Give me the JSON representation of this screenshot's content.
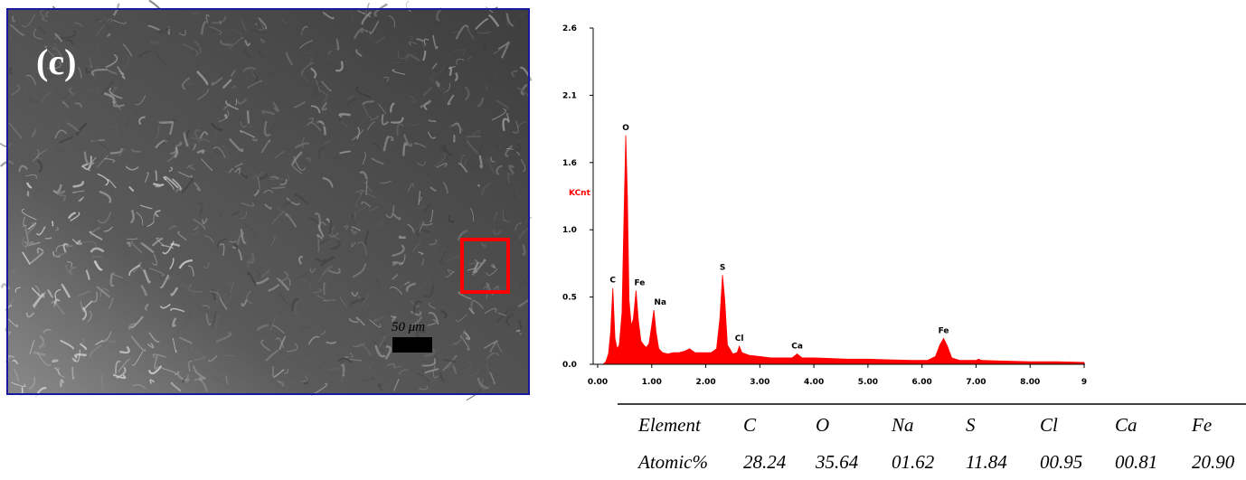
{
  "image": {
    "panel_label": "(c)",
    "scale_bar": "50 μm"
  },
  "chart_data": {
    "type": "area",
    "y_label": "KCnt",
    "color": "#ff0000",
    "x": [
      0.1,
      0.15,
      0.2,
      0.24,
      0.28,
      0.32,
      0.36,
      0.4,
      0.45,
      0.49,
      0.52,
      0.55,
      0.58,
      0.62,
      0.66,
      0.71,
      0.75,
      0.8,
      0.85,
      0.9,
      0.95,
      1.0,
      1.04,
      1.08,
      1.13,
      1.2,
      1.3,
      1.4,
      1.5,
      1.6,
      1.7,
      1.8,
      1.9,
      2.0,
      2.1,
      2.2,
      2.26,
      2.31,
      2.35,
      2.4,
      2.5,
      2.58,
      2.62,
      2.67,
      2.8,
      3.0,
      3.2,
      3.4,
      3.6,
      3.69,
      3.78,
      4.0,
      4.3,
      4.6,
      5.0,
      5.4,
      5.8,
      6.1,
      6.25,
      6.33,
      6.4,
      6.47,
      6.55,
      6.7,
      7.0,
      7.05,
      7.1,
      7.5,
      8.0,
      8.5,
      9.0
    ],
    "values": [
      0.0,
      0.02,
      0.08,
      0.25,
      0.59,
      0.2,
      0.12,
      0.15,
      0.4,
      1.2,
      1.77,
      1.3,
      0.5,
      0.3,
      0.35,
      0.57,
      0.35,
      0.18,
      0.15,
      0.13,
      0.16,
      0.3,
      0.42,
      0.25,
      0.12,
      0.09,
      0.08,
      0.09,
      0.09,
      0.1,
      0.12,
      0.09,
      0.09,
      0.09,
      0.09,
      0.12,
      0.35,
      0.69,
      0.5,
      0.15,
      0.08,
      0.09,
      0.14,
      0.09,
      0.07,
      0.06,
      0.05,
      0.05,
      0.05,
      0.08,
      0.05,
      0.05,
      0.045,
      0.04,
      0.04,
      0.035,
      0.03,
      0.03,
      0.06,
      0.15,
      0.2,
      0.14,
      0.05,
      0.03,
      0.03,
      0.04,
      0.03,
      0.025,
      0.02,
      0.02,
      0.015
    ],
    "xlim": [
      0,
      9
    ],
    "ylim": [
      0,
      2.6
    ],
    "xticks": [
      {
        "value": 0,
        "label": "0.00"
      },
      {
        "value": 1,
        "label": "1.00"
      },
      {
        "value": 2,
        "label": "2.00"
      },
      {
        "value": 3,
        "label": "3.00"
      },
      {
        "value": 4,
        "label": "4.00"
      },
      {
        "value": 5,
        "label": "5.00"
      },
      {
        "value": 6,
        "label": "6.00"
      },
      {
        "value": 7,
        "label": "7.00"
      },
      {
        "value": 8,
        "label": "8.00"
      },
      9
    ],
    "yticks": [
      {
        "value": 0,
        "label": "0.0"
      },
      {
        "value": 0.52,
        "label": "0.5"
      },
      {
        "value": 1.04,
        "label": "1.0"
      },
      {
        "value": 1.56,
        "label": "1.6"
      },
      {
        "value": 2.08,
        "label": "2.1"
      },
      2.6
    ],
    "annotations": [
      {
        "text": "C",
        "x": 0.28,
        "y": 0.59
      },
      {
        "text": "O",
        "x": 0.52,
        "y": 1.77
      },
      {
        "text": "Fe",
        "x": 0.71,
        "y": 0.57
      },
      {
        "text": "Na",
        "x": 1.04,
        "y": 0.42
      },
      {
        "text": "S",
        "x": 2.31,
        "y": 0.69
      },
      {
        "text": "Cl",
        "x": 2.62,
        "y": 0.14
      },
      {
        "text": "Ca",
        "x": 3.69,
        "y": 0.08
      },
      {
        "text": "Fe",
        "x": 6.4,
        "y": 0.2
      }
    ]
  },
  "table": {
    "rows": [
      [
        "Element",
        "C",
        "O",
        "Na",
        "S",
        "Cl",
        "Ca",
        "Fe"
      ],
      [
        "Atomic%",
        "28.24",
        "35.64",
        "01.62",
        "11.84",
        "00.95",
        "00.81",
        "20.90"
      ]
    ]
  }
}
